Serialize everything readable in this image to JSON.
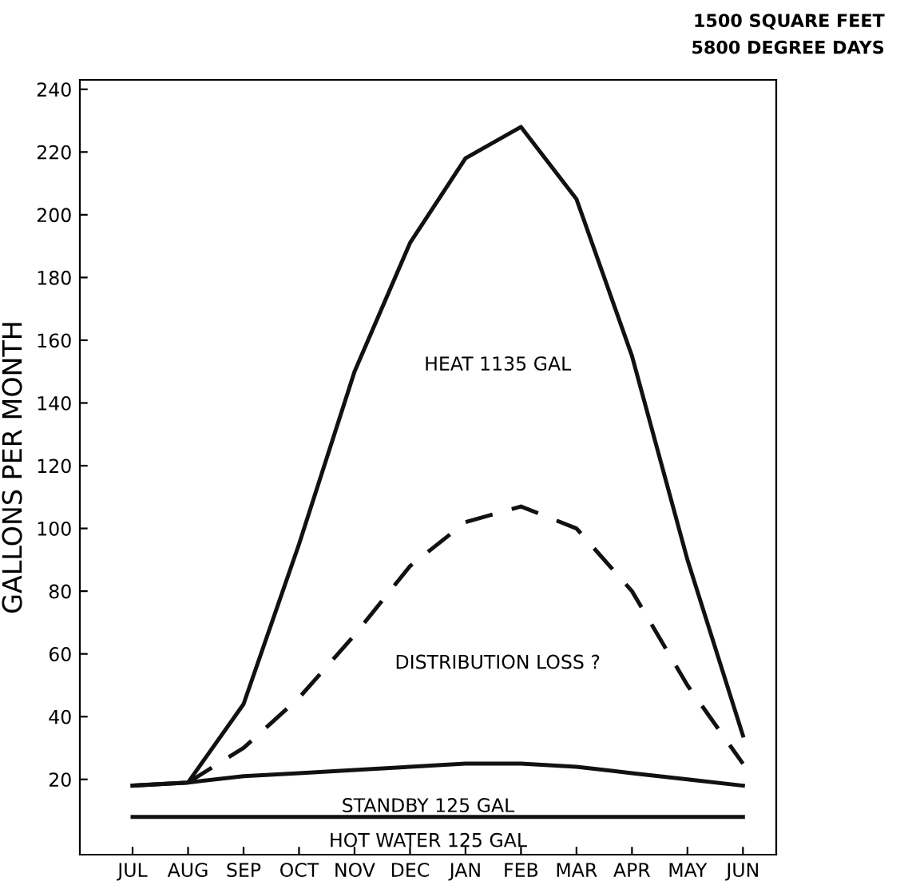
{
  "chart_data": {
    "type": "line",
    "ylabel": "GALLONS PER MONTH",
    "categories": [
      "JUL",
      "AUG",
      "SEP",
      "OCT",
      "NOV",
      "DEC",
      "JAN",
      "FEB",
      "MAR",
      "APR",
      "MAY",
      "JUN"
    ],
    "ylim": [
      -4,
      243
    ],
    "yticks": [
      20,
      40,
      60,
      80,
      100,
      120,
      140,
      160,
      180,
      200,
      220,
      240
    ],
    "grid": false,
    "legend": false,
    "marker": "none",
    "series": [
      {
        "color": "#111111",
        "line_style": "solid",
        "values": [
          18,
          19,
          44,
          95,
          150,
          191,
          218,
          228,
          205,
          155,
          90,
          34
        ]
      },
      {
        "color": "#111111",
        "line_style": "dashed",
        "values": [
          null,
          19,
          30,
          46,
          66,
          88,
          102,
          107,
          100,
          80,
          50,
          25
        ]
      },
      {
        "color": "#111111",
        "line_style": "solid",
        "values": [
          18,
          19,
          21,
          22,
          23,
          24,
          25,
          25,
          24,
          22,
          20,
          18
        ]
      },
      {
        "color": "#111111",
        "line_style": "solid",
        "values": [
          8,
          8,
          8,
          8,
          8,
          8,
          8,
          8,
          8,
          8,
          8,
          8
        ]
      }
    ],
    "annotations": [
      "1500 SQUARE FEET",
      "5800 DEGREE DAYS",
      "HEAT 1135 GAL",
      "DISTRIBUTION LOSS ?",
      "STANDBY 125 GAL",
      "HOT WATER 125 GAL"
    ]
  }
}
